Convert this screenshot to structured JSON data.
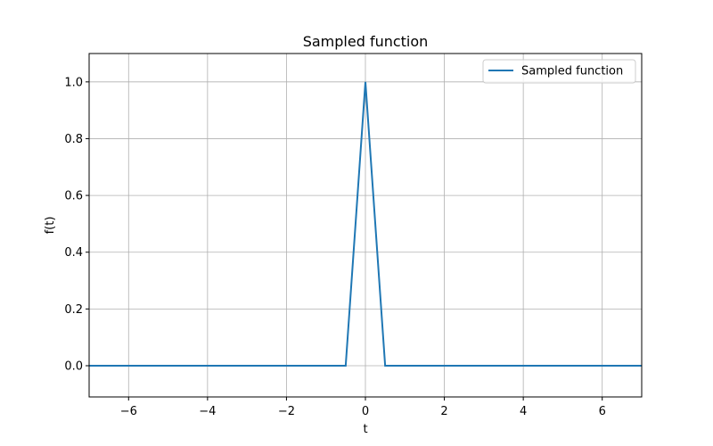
{
  "chart_data": {
    "type": "line",
    "title": "Sampled function",
    "xlabel": "t",
    "ylabel": "f(t)",
    "xlim": [
      -7,
      7
    ],
    "ylim": [
      -0.11,
      1.1
    ],
    "xticks": [
      -6,
      -4,
      -2,
      0,
      2,
      4,
      6
    ],
    "yticks": [
      0.0,
      0.2,
      0.4,
      0.6,
      0.8,
      1.0
    ],
    "xtick_labels": [
      "−6",
      "−4",
      "−2",
      "0",
      "2",
      "4",
      "6"
    ],
    "ytick_labels": [
      "0.0",
      "0.2",
      "0.4",
      "0.6",
      "0.8",
      "1.0"
    ],
    "grid": true,
    "legend_position": "top-right",
    "series": [
      {
        "name": "Sampled function",
        "color": "#1f77b4",
        "x": [
          -7,
          -0.5,
          0,
          0.5,
          7
        ],
        "y": [
          0,
          0,
          1,
          0,
          0
        ]
      }
    ]
  }
}
